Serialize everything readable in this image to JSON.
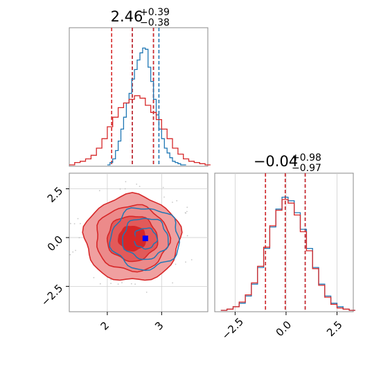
{
  "chart_data": [
    {
      "type": "histogram",
      "panel": "top-left marginal",
      "title_value": "2.46",
      "title_upper": "+0.39",
      "title_lower": "−0.38",
      "xlim": [
        1.3,
        3.85
      ],
      "series": [
        {
          "color": "#1f77b4",
          "bins_x": [
            2.0,
            2.05,
            2.1,
            2.15,
            2.2,
            2.25,
            2.3,
            2.35,
            2.4,
            2.45,
            2.5,
            2.55,
            2.6,
            2.65,
            2.7,
            2.75,
            2.8,
            2.85,
            2.9,
            2.95,
            3.0,
            3.05,
            3.1,
            3.15,
            3.2,
            3.25,
            3.3,
            3.35,
            3.4
          ],
          "counts": [
            0.0,
            0.02,
            0.05,
            0.12,
            0.2,
            0.3,
            0.4,
            0.52,
            0.6,
            0.72,
            0.8,
            0.88,
            0.94,
            0.98,
            0.97,
            0.82,
            0.7,
            0.55,
            0.42,
            0.3,
            0.22,
            0.14,
            0.1,
            0.06,
            0.03,
            0.02,
            0.01,
            0.0,
            0.0
          ],
          "quantiles": [
            2.46,
            2.85,
            2.95
          ]
        },
        {
          "color": "#d62728",
          "bins_x": [
            1.3,
            1.4,
            1.5,
            1.6,
            1.7,
            1.8,
            1.9,
            2.0,
            2.1,
            2.2,
            2.3,
            2.4,
            2.5,
            2.6,
            2.7,
            2.8,
            2.9,
            3.0,
            3.1,
            3.2,
            3.3,
            3.4,
            3.5,
            3.6,
            3.7,
            3.8
          ],
          "counts": [
            0.0,
            0.02,
            0.03,
            0.05,
            0.08,
            0.14,
            0.22,
            0.32,
            0.4,
            0.48,
            0.52,
            0.55,
            0.58,
            0.56,
            0.5,
            0.44,
            0.38,
            0.3,
            0.22,
            0.14,
            0.09,
            0.05,
            0.03,
            0.02,
            0.01,
            0.0
          ],
          "quantiles": [
            2.08,
            2.46,
            2.85
          ]
        }
      ]
    },
    {
      "type": "histogram",
      "panel": "bottom-right marginal",
      "title_value": "−0.04",
      "title_upper": "+0.98",
      "title_lower": "−0.97",
      "xlim": [
        -3.5,
        3.3
      ],
      "xticks": [
        "−2.5",
        "0.0",
        "2.5"
      ],
      "series": [
        {
          "color": "#1f77b4",
          "bins_x": [
            -3.2,
            -2.9,
            -2.6,
            -2.3,
            -2.0,
            -1.7,
            -1.4,
            -1.1,
            -0.8,
            -0.5,
            -0.2,
            0.1,
            0.4,
            0.7,
            1.0,
            1.3,
            1.6,
            1.9,
            2.2,
            2.5,
            2.8,
            3.1
          ],
          "counts": [
            0.0,
            0.01,
            0.03,
            0.06,
            0.12,
            0.22,
            0.36,
            0.52,
            0.7,
            0.85,
            0.95,
            0.92,
            0.82,
            0.68,
            0.52,
            0.36,
            0.22,
            0.12,
            0.06,
            0.03,
            0.01,
            0.0
          ],
          "quantiles": [
            -1.01,
            -0.04,
            0.94
          ]
        },
        {
          "color": "#d62728",
          "bins_x": [
            -3.2,
            -2.9,
            -2.6,
            -2.3,
            -2.0,
            -1.7,
            -1.4,
            -1.1,
            -0.8,
            -0.5,
            -0.2,
            0.1,
            0.4,
            0.7,
            1.0,
            1.3,
            1.6,
            1.9,
            2.2,
            2.5,
            2.8,
            3.1
          ],
          "counts": [
            0.0,
            0.01,
            0.03,
            0.07,
            0.13,
            0.23,
            0.37,
            0.53,
            0.71,
            0.84,
            0.93,
            0.9,
            0.8,
            0.66,
            0.5,
            0.35,
            0.21,
            0.11,
            0.05,
            0.02,
            0.01,
            0.0
          ],
          "quantiles": [
            -1.01,
            -0.04,
            0.94
          ]
        }
      ]
    },
    {
      "type": "contour",
      "panel": "bottom-left joint",
      "xlim": [
        1.3,
        3.85
      ],
      "ylim": [
        -3.8,
        3.3
      ],
      "xticks": [
        "2",
        "3"
      ],
      "yticks": [
        "−2.5",
        "0.0",
        "2.5"
      ],
      "truth_markers": [
        {
          "color": "#d62728",
          "x": 2.46,
          "y": -0.04
        },
        {
          "color": "#0000ff",
          "x": 2.7,
          "y": -0.04
        }
      ],
      "contours": [
        {
          "color": "#d62728",
          "cx": 2.46,
          "cy": -0.04,
          "levels": [
            0.6,
            1.1,
            1.6,
            2.1
          ]
        },
        {
          "color": "#1f77b4",
          "cx": 2.7,
          "cy": -0.04,
          "levels": [
            0.5,
            1.0,
            1.5
          ]
        }
      ]
    }
  ]
}
